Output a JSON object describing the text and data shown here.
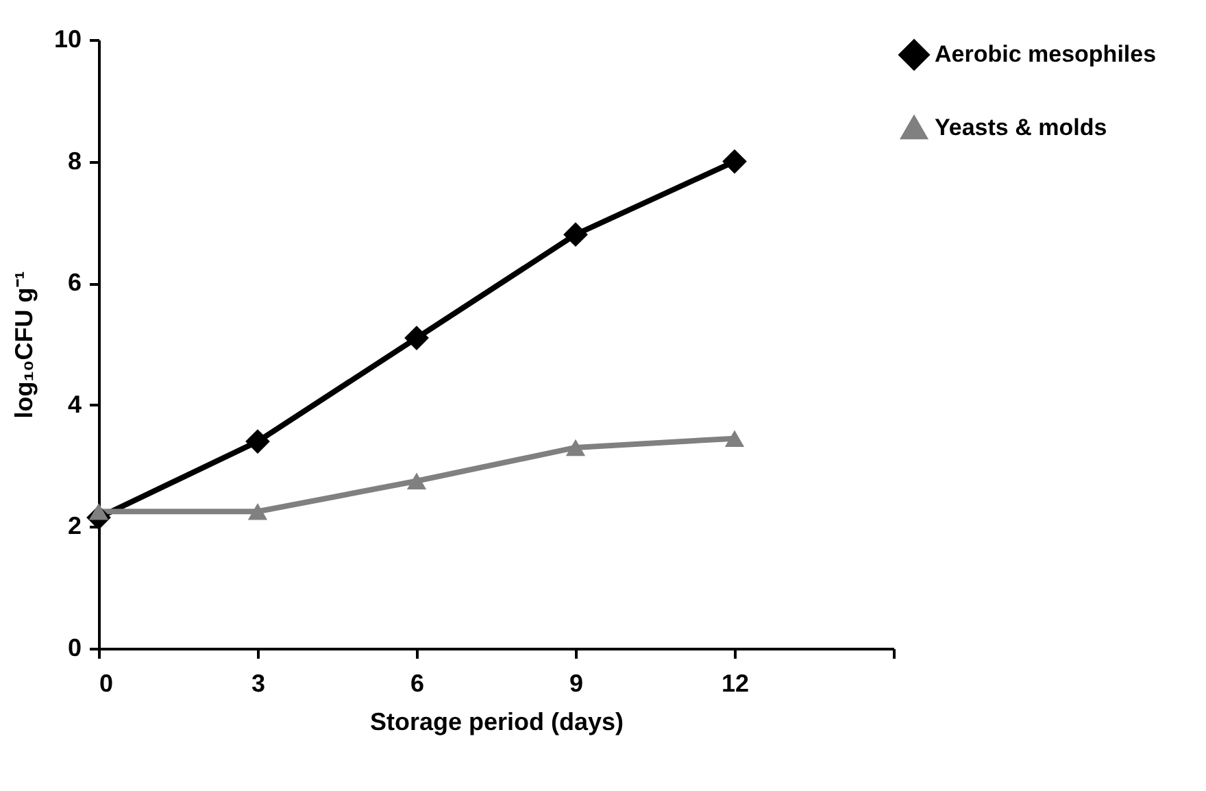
{
  "chart_data": {
    "type": "line",
    "xlabel": "Storage period (days)",
    "ylabel": "log₁₀CFU g⁻¹",
    "x": [
      0,
      3,
      6,
      9,
      12
    ],
    "series": [
      {
        "name": "Aerobic mesophiles",
        "color": "#000000",
        "marker": "diamond",
        "values": [
          2.15,
          3.4,
          5.1,
          6.8,
          8.0
        ]
      },
      {
        "name": "Yeasts & molds",
        "color": "#808080",
        "marker": "triangle",
        "values": [
          2.25,
          2.25,
          2.75,
          3.3,
          3.45
        ]
      }
    ],
    "xlim": [
      0,
      15
    ],
    "xticks": [
      0,
      3,
      6,
      9,
      12,
      {
        "value": 15,
        "label": null
      }
    ],
    "ylim": [
      0,
      10
    ],
    "yticks": [
      0,
      2,
      4,
      6,
      8,
      10
    ],
    "grid": false,
    "legend": "right",
    "line_style": "solid"
  }
}
